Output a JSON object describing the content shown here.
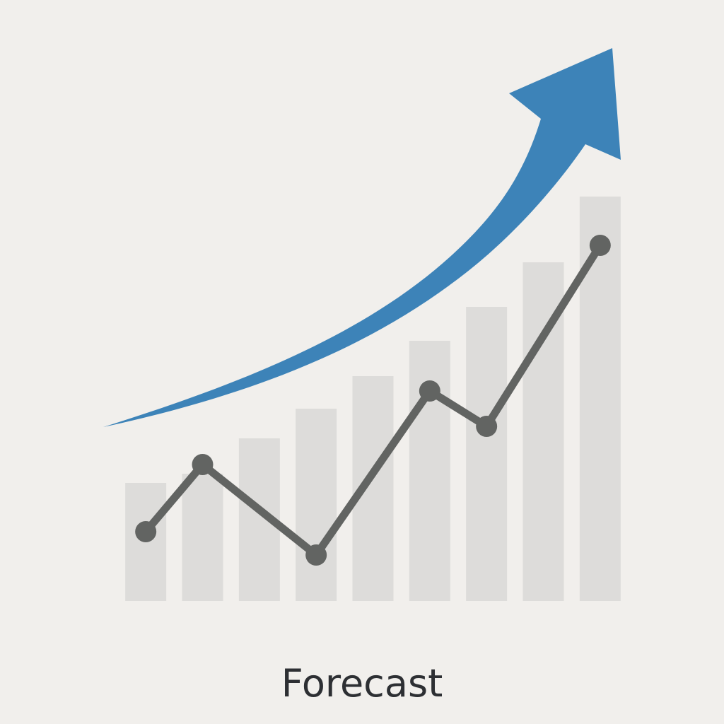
{
  "chart_data": {
    "type": "bar",
    "title": "Forecast",
    "categories": [
      null,
      null,
      null,
      null,
      null,
      null,
      null,
      null,
      null
    ],
    "values": [
      167,
      180,
      230,
      272,
      318,
      368,
      416,
      479,
      572
    ],
    "color": "#dddcda",
    "ylim": [
      0,
      600
    ],
    "line": {
      "x": [
        0,
        1,
        3,
        5,
        6,
        8
      ],
      "values": [
        98,
        193,
        65,
        297,
        247,
        503
      ],
      "color": "#626462"
    },
    "arrow_color": "#3d83b8"
  }
}
